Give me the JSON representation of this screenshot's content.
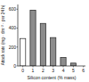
{
  "chart_data": {
    "type": "bar",
    "x_label": "Silicon content (% mass)",
    "y_label": "Attack rate (mg · dm⁻² · per 24 h)",
    "x": [
      0,
      1,
      2,
      3,
      4,
      5
    ],
    "values": [
      290,
      590,
      450,
      300,
      90,
      30
    ],
    "colors": [
      "#ffffff",
      "#8c8c8c",
      "#8c8c8c",
      "#8c8c8c",
      "#8c8c8c",
      "#8c8c8c"
    ],
    "xlim": [
      -0.5,
      6.2
    ],
    "xticks": [
      0,
      1,
      2,
      3,
      4,
      5,
      6
    ],
    "ylim": [
      0,
      650
    ],
    "yticks": [
      0,
      200,
      400,
      600
    ],
    "grid": false
  }
}
